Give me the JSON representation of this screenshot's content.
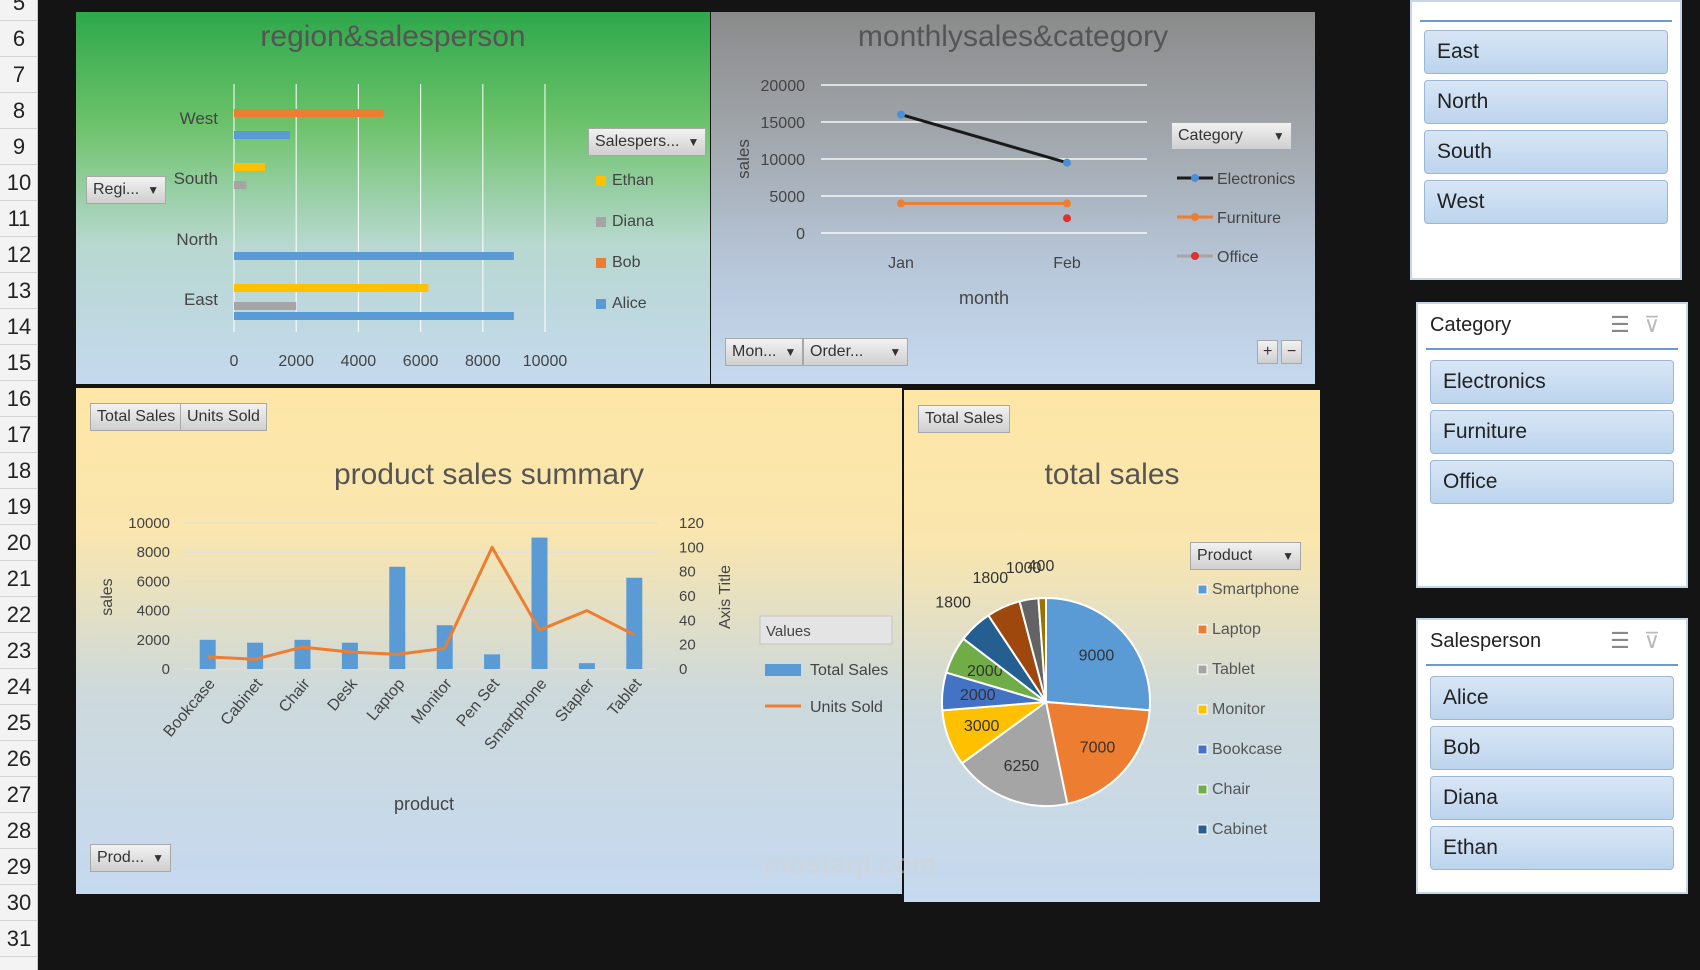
{
  "row_numbers": [
    "5",
    "6",
    "7",
    "8",
    "9",
    "10",
    "11",
    "12",
    "13",
    "14",
    "15",
    "16",
    "17",
    "18",
    "19",
    "20",
    "21",
    "22",
    "23",
    "24",
    "25",
    "26",
    "27",
    "28",
    "29",
    "30",
    "31"
  ],
  "watermark": "mostaql.com",
  "charts": {
    "region": {
      "title": "region&salesperson",
      "filter_button": "Regi...",
      "legend_button": "Salespers...",
      "chart_data": {
        "type": "bar",
        "orientation": "horizontal",
        "categories": [
          "East",
          "North",
          "South",
          "West"
        ],
        "series": [
          {
            "name": "Alice",
            "color": "#5b9bd5",
            "values": [
              9000,
              9000,
              0,
              1800
            ]
          },
          {
            "name": "Bob",
            "color": "#ed7d31",
            "values": [
              0,
              0,
              0,
              4800
            ]
          },
          {
            "name": "Diana",
            "color": "#a5a5a5",
            "values": [
              2000,
              0,
              400,
              0
            ]
          },
          {
            "name": "Ethan",
            "color": "#ffc000",
            "values": [
              6250,
              0,
              1000,
              0
            ]
          }
        ],
        "legend_order": [
          "Ethan",
          "Diana",
          "Bob",
          "Alice"
        ],
        "xticks": [
          "0",
          "2000",
          "4000",
          "6000",
          "8000",
          "10000"
        ],
        "xlim": [
          0,
          10000
        ],
        "grid": true,
        "legend_position": "right"
      }
    },
    "monthly": {
      "title": "monthlysales&category",
      "legend_button": "Category",
      "filter_buttons": [
        "Mon...",
        "Order..."
      ],
      "plus_minus": [
        "+",
        "−"
      ],
      "chart_data": {
        "type": "line",
        "categories": [
          "Jan",
          "Feb"
        ],
        "series": [
          {
            "name": "Electronics",
            "color": "#1a1a1a",
            "marker": "#4a90d9",
            "values": [
              16000,
              9500
            ]
          },
          {
            "name": "Furniture",
            "color": "#ed7d31",
            "marker": "#ed7d31",
            "values": [
              4000,
              4000
            ]
          },
          {
            "name": "Office",
            "color": "#a5a5a5",
            "marker": "#e03030",
            "values": [
              null,
              2000
            ]
          }
        ],
        "yticks": [
          "20000",
          "15000",
          "10000",
          "5000",
          "0"
        ],
        "ylim": [
          0,
          20000
        ],
        "xlabel": "month",
        "ylabel": "sales",
        "grid": true,
        "legend_position": "right"
      }
    },
    "product": {
      "title": "product sales summary",
      "field_buttons": [
        "Total Sales",
        "Units Sold"
      ],
      "filter_button": "Prod...",
      "legend_header": "Values",
      "chart_data": {
        "type": "bar",
        "combo": "bar-line-secondary-axis",
        "categories": [
          "Bookcase",
          "Cabinet",
          "Chair",
          "Desk",
          "Laptop",
          "Monitor",
          "Pen Set",
          "Smartphone",
          "Stapler",
          "Tablet"
        ],
        "series": [
          {
            "name": "Total Sales",
            "type": "bar",
            "axis": "primary",
            "color": "#5b9bd5",
            "values": [
              2000,
              1800,
              2000,
              1800,
              7000,
              3000,
              1000,
              9000,
              400,
              6250
            ]
          },
          {
            "name": "Units Sold",
            "type": "line",
            "axis": "secondary",
            "color": "#ed7d31",
            "values": [
              10,
              8,
              18,
              14,
              12,
              17,
              100,
              32,
              48,
              28
            ]
          }
        ],
        "yticks": [
          "10000",
          "8000",
          "6000",
          "4000",
          "2000",
          "0"
        ],
        "ylim": [
          0,
          10000
        ],
        "y2ticks": [
          "120",
          "100",
          "80",
          "60",
          "40",
          "20",
          "0"
        ],
        "y2lim": [
          0,
          120
        ],
        "xlabel": "product",
        "ylabel": "sales",
        "y2label": "Axis Title",
        "grid": true,
        "legend_position": "right"
      }
    },
    "total": {
      "title": "total sales",
      "field_button": "Total Sales",
      "legend_button": "Product",
      "chart_data": {
        "type": "pie",
        "slices": [
          {
            "name": "Smartphone",
            "value": 9000,
            "label": "9000",
            "color": "#5b9bd5"
          },
          {
            "name": "Laptop",
            "value": 7000,
            "label": "7000",
            "color": "#ed7d31"
          },
          {
            "name": "Tablet",
            "value": 6250,
            "label": "6250",
            "color": "#a5a5a5"
          },
          {
            "name": "Monitor",
            "value": 3000,
            "label": "3000",
            "color": "#ffc000"
          },
          {
            "name": "Bookcase",
            "value": 2000,
            "label": "2000",
            "color": "#4472c4"
          },
          {
            "name": "Chair",
            "value": 2000,
            "label": "2000",
            "color": "#70ad47"
          },
          {
            "name": "Cabinet",
            "value": 1800,
            "label": "1800",
            "color": "#255e91"
          },
          {
            "name": "Desk",
            "value": 1800,
            "label": "1800",
            "color": "#9e480e"
          },
          {
            "name": "Pen Set",
            "value": 1000,
            "label": "1000",
            "color": "#636363"
          },
          {
            "name": "Stapler",
            "value": 400,
            "label": "400",
            "color": "#997300"
          }
        ],
        "legend_visible": [
          "Smartphone",
          "Laptop",
          "Tablet",
          "Monitor",
          "Bookcase",
          "Chair",
          "Cabinet"
        ],
        "legend_position": "right"
      }
    }
  },
  "slicers": {
    "region": {
      "title": "",
      "items": [
        "East",
        "North",
        "South",
        "West"
      ]
    },
    "category": {
      "title": "Category",
      "items": [
        "Electronics",
        "Furniture",
        "Office"
      ]
    },
    "salesperson": {
      "title": "Salesperson",
      "items": [
        "Alice",
        "Bob",
        "Diana",
        "Ethan"
      ]
    }
  }
}
